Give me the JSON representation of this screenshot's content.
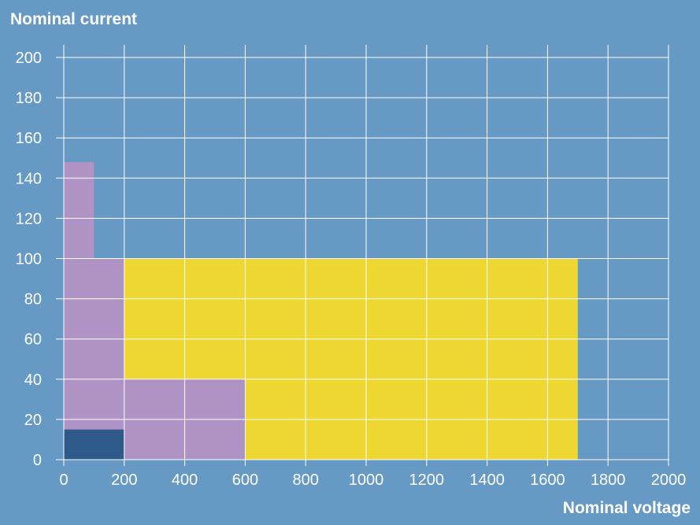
{
  "page": {
    "background": "#6699c4",
    "grid_color": "#ffffff"
  },
  "chart_data": {
    "type": "area",
    "title": "",
    "ylabel": "Nominal current",
    "xlabel": "Nominal voltage",
    "xlim": [
      0,
      2000
    ],
    "ylim": [
      0,
      200
    ],
    "x_ticks": [
      0,
      200,
      400,
      600,
      800,
      1000,
      1200,
      1400,
      1600,
      1800,
      2000
    ],
    "y_ticks": [
      0,
      20,
      40,
      60,
      80,
      100,
      120,
      140,
      160,
      180,
      200
    ],
    "grid": true,
    "legend": "none",
    "series": [
      {
        "color": "#eed732",
        "polygon": [
          [
            200,
            0
          ],
          [
            1700,
            0
          ],
          [
            1700,
            100
          ],
          [
            200,
            100
          ]
        ]
      },
      {
        "color": "#ae93c4",
        "polygon": [
          [
            0,
            0
          ],
          [
            600,
            0
          ],
          [
            600,
            40
          ],
          [
            200,
            40
          ],
          [
            200,
            100
          ],
          [
            100,
            100
          ],
          [
            100,
            148
          ],
          [
            0,
            148
          ]
        ]
      },
      {
        "color": "#2d5a89",
        "polygon": [
          [
            0,
            0
          ],
          [
            200,
            0
          ],
          [
            200,
            15
          ],
          [
            0,
            15
          ]
        ]
      }
    ]
  }
}
